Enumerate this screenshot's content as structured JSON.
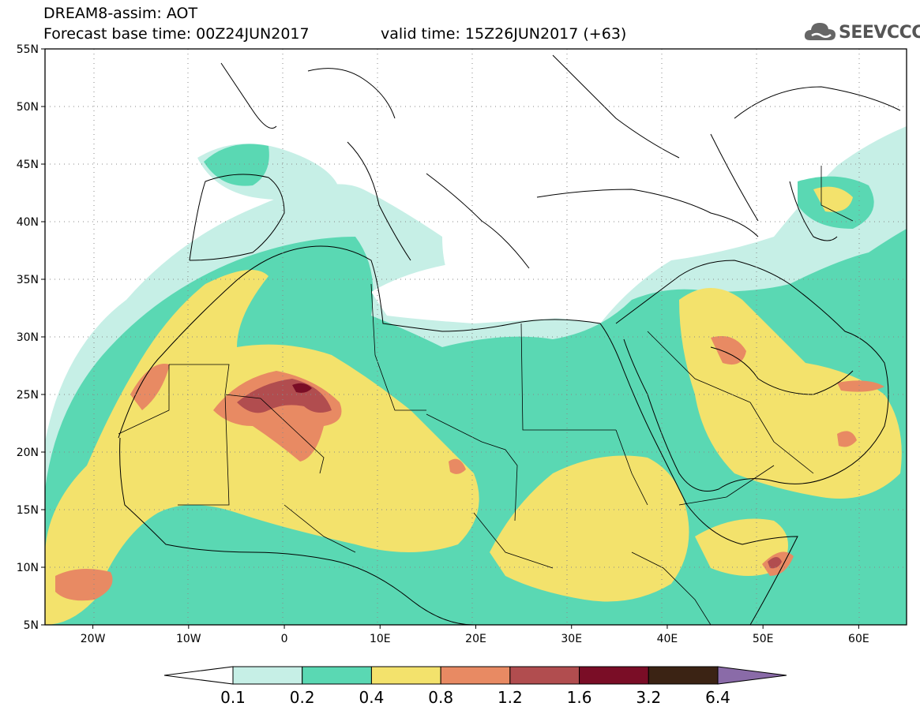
{
  "header": {
    "title": "DREAM8-assim: AOT",
    "base_time": "Forecast base time: 00Z24JUN2017",
    "valid_time": "valid time: 15Z26JUN2017 (+63)",
    "logo_text": "SEEVCCC",
    "logo_icon": "cloud-icon"
  },
  "map": {
    "lat_labels": [
      "55N",
      "50N",
      "45N",
      "40N",
      "35N",
      "30N",
      "25N",
      "20N",
      "15N",
      "10N",
      "5N"
    ],
    "lon_labels": [
      "20W",
      "10W",
      "0",
      "10E",
      "20E",
      "30E",
      "40E",
      "50E",
      "60E"
    ],
    "extent": {
      "lon": [
        -25,
        65
      ],
      "lat": [
        5,
        55
      ]
    }
  },
  "colorbar": {
    "labels": [
      "0.1",
      "0.2",
      "0.4",
      "0.8",
      "1.2",
      "1.6",
      "3.2",
      "6.4"
    ],
    "colors": [
      "#ffffff",
      "#c6efe6",
      "#5ad8b3",
      "#f3e26c",
      "#e88a63",
      "#b14d4f",
      "#7a0d26",
      "#3b2314",
      "#8a6ba8"
    ]
  }
}
